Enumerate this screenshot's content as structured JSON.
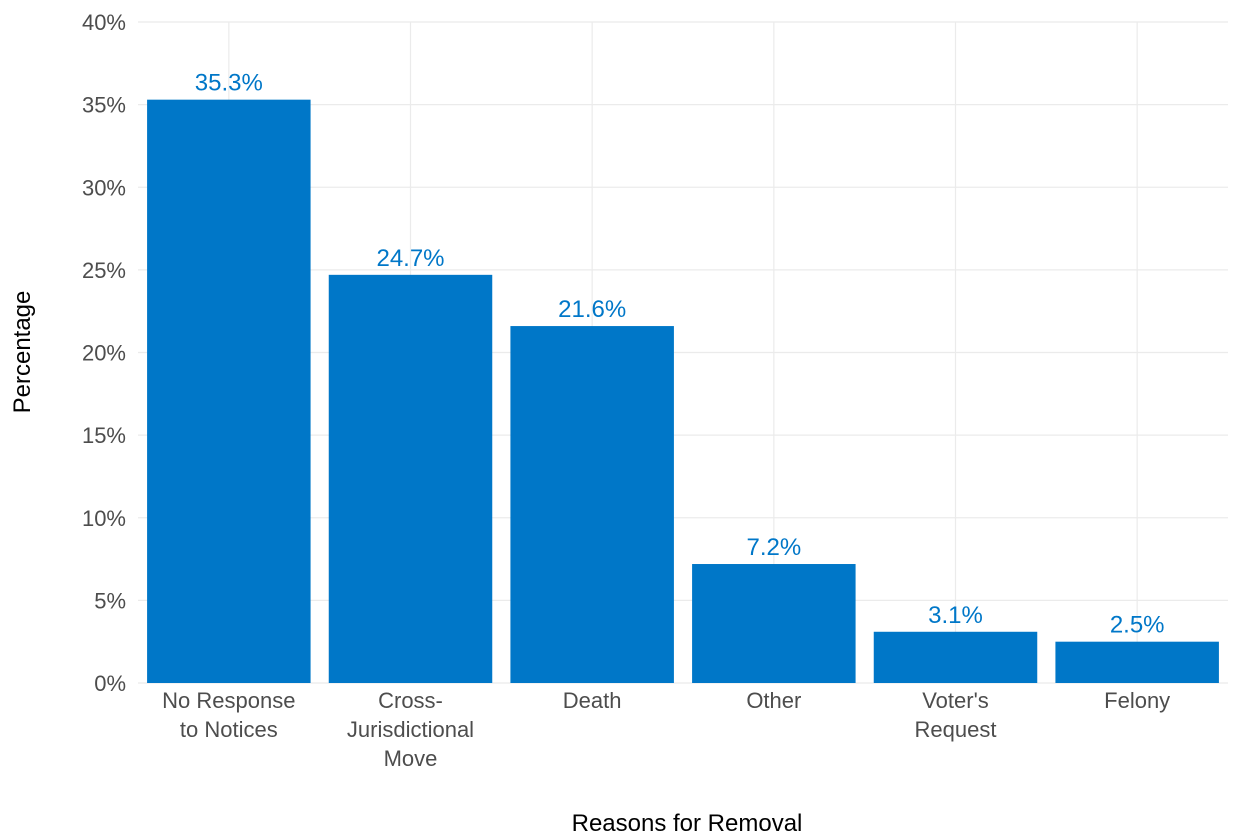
{
  "chart_data": {
    "type": "bar",
    "title": "",
    "xlabel": "Reasons for Removal",
    "ylabel": "Percentage",
    "categories": [
      [
        "No Response",
        "to Notices"
      ],
      [
        "Cross-",
        "Jurisdictional",
        "Move"
      ],
      [
        "Death"
      ],
      [
        "Other"
      ],
      [
        "Voter's",
        "Request"
      ],
      [
        "Felony"
      ]
    ],
    "values": [
      35.3,
      24.7,
      21.6,
      7.2,
      3.1,
      2.5
    ],
    "value_labels": [
      "35.3%",
      "24.7%",
      "21.6%",
      "7.2%",
      "3.1%",
      "2.5%"
    ],
    "ylim": [
      0,
      40
    ],
    "yticks": [
      0,
      5,
      10,
      15,
      20,
      25,
      30,
      35,
      40
    ],
    "ytick_labels": [
      "0%",
      "5%",
      "10%",
      "15%",
      "20%",
      "25%",
      "30%",
      "35%",
      "40%"
    ],
    "grid": true,
    "legend": "none",
    "colors": {
      "bar": "#0077c8",
      "value_label": "#0077c8",
      "grid": "#ebebeb"
    }
  }
}
